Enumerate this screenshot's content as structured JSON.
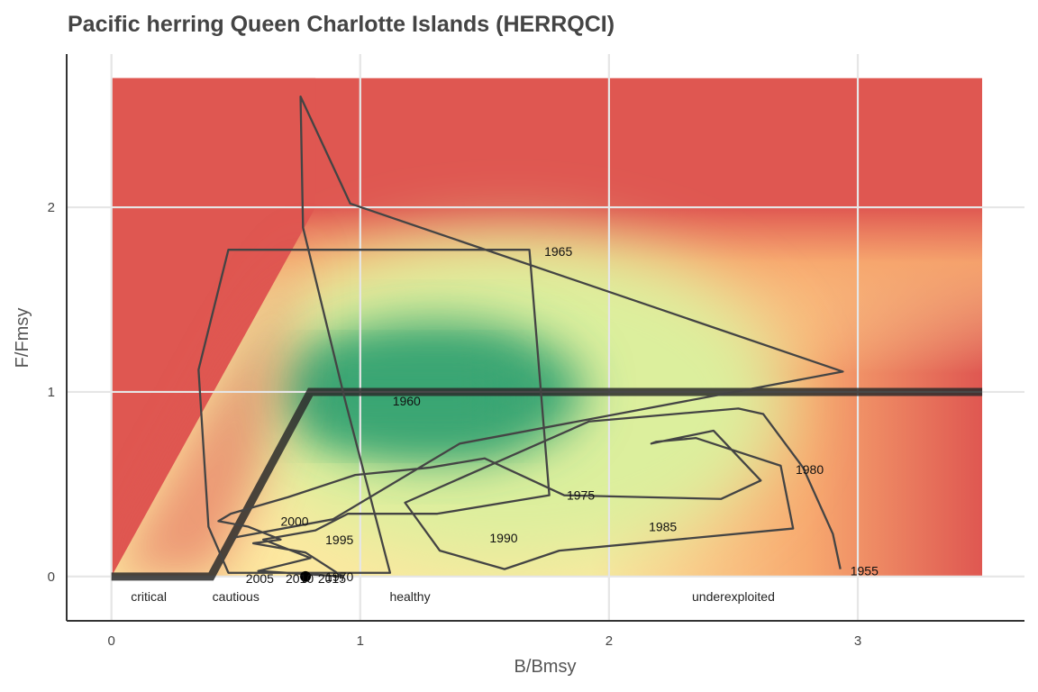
{
  "chart_data": {
    "type": "line",
    "title": "Pacific herring Queen Charlotte Islands (HERRQCI)",
    "xlabel": "B/Bmsy",
    "ylabel": "F/Fmsy",
    "xlim": [
      -0.18,
      3.67
    ],
    "ylim": [
      -0.24,
      2.83
    ],
    "x_ticks": [
      0,
      1,
      2,
      3
    ],
    "y_ticks": [
      0,
      1,
      2
    ],
    "grid": true,
    "legend": "none",
    "colors": {
      "trajectory": "#444444",
      "control_rule": "#2b2b2b",
      "red": "#df5751",
      "green": "#3aa673",
      "light_green": "#dcef9d",
      "yellow": "#fde8a0",
      "orange": "#f7a96f",
      "final_point": "#000000"
    },
    "background_zone": {
      "x_range": [
        0,
        3.5
      ],
      "y_range": [
        0,
        2.7
      ]
    },
    "control_rule": {
      "x": [
        0,
        0.4,
        0.8,
        3.5
      ],
      "y": [
        0,
        0,
        1,
        1
      ]
    },
    "series": [
      {
        "x": [
          2.93,
          2.9,
          2.78,
          2.62,
          2.52,
          1.92,
          1.18,
          1.32,
          1.58,
          1.8,
          2.74,
          2.69,
          2.35,
          2.19,
          2.17,
          2.42,
          2.61,
          2.45,
          1.82,
          1.5,
          1.28,
          0.98,
          0.71,
          0.48,
          0.43,
          0.55,
          0.68,
          0.57,
          0.78,
          0.93,
          0.59,
          0.8,
          0.61,
          0.82,
          0.95,
          1.31,
          1.76,
          1.68,
          0.47,
          0.35,
          0.39,
          0.47,
          1.12,
          0.94,
          0.77,
          0.76,
          0.96,
          2.94,
          1.4,
          0.89,
          0.49
        ],
        "y": [
          0.04,
          0.23,
          0.59,
          0.88,
          0.91,
          0.84,
          0.4,
          0.14,
          0.04,
          0.14,
          0.26,
          0.6,
          0.75,
          0.73,
          0.72,
          0.79,
          0.52,
          0.42,
          0.44,
          0.64,
          0.59,
          0.55,
          0.43,
          0.34,
          0.3,
          0.27,
          0.2,
          0.18,
          0.13,
          0.0,
          0.03,
          0.1,
          0.2,
          0.25,
          0.34,
          0.34,
          0.44,
          1.77,
          1.77,
          1.12,
          0.27,
          0.02,
          0.02,
          0.95,
          1.89,
          2.6,
          2.02,
          1.11,
          0.72,
          0.31,
          0.21
        ]
      }
    ],
    "year_labels": [
      {
        "text": "1955",
        "x": 2.97,
        "y": 0.03
      },
      {
        "text": "1960",
        "x": 1.13,
        "y": 0.95
      },
      {
        "text": "1965",
        "x": 1.74,
        "y": 1.76
      },
      {
        "text": "1970",
        "x": 0.86,
        "y": 0.0
      },
      {
        "text": "1975",
        "x": 1.83,
        "y": 0.44
      },
      {
        "text": "1980",
        "x": 2.75,
        "y": 0.58
      },
      {
        "text": "1985",
        "x": 2.16,
        "y": 0.27
      },
      {
        "text": "1990",
        "x": 1.52,
        "y": 0.21
      },
      {
        "text": "1995",
        "x": 0.86,
        "y": 0.2
      },
      {
        "text": "2000",
        "x": 0.68,
        "y": 0.3
      },
      {
        "text": "2005",
        "x": 0.54,
        "y": -0.01
      },
      {
        "text": "2010",
        "x": 0.7,
        "y": -0.01
      },
      {
        "text": "2015",
        "x": 0.83,
        "y": -0.01
      }
    ],
    "final_point": {
      "x": 0.78,
      "y": 0.0
    },
    "zone_labels": [
      {
        "text": "critical",
        "x": 0.15
      },
      {
        "text": "cautious",
        "x": 0.5
      },
      {
        "text": "healthy",
        "x": 1.2
      },
      {
        "text": "underexploited",
        "x": 2.5
      }
    ]
  }
}
